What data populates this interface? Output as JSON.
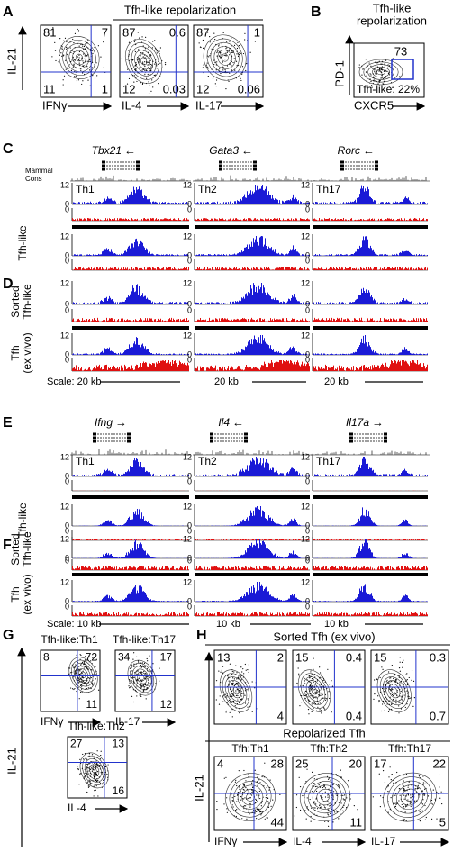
{
  "A": {
    "letter": "A",
    "title": "Tfh-like repolarization",
    "y_label": "IL-21",
    "plots": [
      {
        "x_label": "IFNγ",
        "q": {
          "tl": "81",
          "tr": "7",
          "bl": "11",
          "br": "1"
        }
      },
      {
        "x_label": "IL-4",
        "q": {
          "tl": "87",
          "tr": "0.6",
          "bl": "12",
          "br": "0.03"
        }
      },
      {
        "x_label": "IL-17",
        "q": {
          "tl": "87",
          "tr": "1",
          "bl": "12",
          "br": "0.06"
        }
      }
    ]
  },
  "B": {
    "letter": "B",
    "title": [
      "Tfh-like",
      "repolarization"
    ],
    "y_label": "PD-1",
    "x_label": "CXCR5",
    "gate": "73",
    "note": "Tfh-like: 22%"
  },
  "C": {
    "letter": "C",
    "genes": [
      {
        "name": "Tbx21",
        "dir": "←"
      },
      {
        "name": "Gata3",
        "dir": "←"
      },
      {
        "name": "Rorc",
        "dir": "←"
      }
    ],
    "cons_label": [
      "Mammal",
      "Cons"
    ],
    "samples": [
      "Th1",
      "Th2",
      "Th17"
    ],
    "row_label": "Tfh-like",
    "scale_labels": [
      "12",
      "0"
    ]
  },
  "D": {
    "letter": "D",
    "row_labels": [
      [
        "Sorted",
        "Tfh-like"
      ],
      [
        "Tfh",
        "(ex vivo)"
      ]
    ],
    "scale_labels": [
      "12",
      "0"
    ],
    "scale": [
      "Scale: 20 kb",
      "20 kb",
      "20 kb"
    ]
  },
  "E": {
    "letter": "E",
    "genes": [
      {
        "name": "Ifng",
        "dir": "→"
      },
      {
        "name": "Il4",
        "dir": "←"
      },
      {
        "name": "Il17a",
        "dir": "→"
      }
    ],
    "samples": [
      "Th1",
      "Th2",
      "Th17"
    ],
    "row_label": "Tfh-like",
    "scale_labels": [
      "12",
      "0"
    ]
  },
  "F": {
    "letter": "F",
    "row_labels": [
      [
        "Sorted",
        "Tfh-like"
      ],
      [
        "Tfh",
        "(ex vivo)"
      ]
    ],
    "scale_labels": [
      "12",
      "0"
    ],
    "scale": [
      "Scale: 10 kb",
      "10 kb",
      "10 kb"
    ]
  },
  "G": {
    "letter": "G",
    "y_label": "IL-21",
    "plots": [
      {
        "title": "Tfh-like:Th1",
        "x_label": "IFNγ",
        "q": {
          "tl": "8",
          "tr": "72",
          "br": "11"
        }
      },
      {
        "title": "Tfh-like:Th17",
        "x_label": "IL-17",
        "q": {
          "tl": "34",
          "tr": "17",
          "br": "12"
        }
      },
      {
        "title": "Tfh-like:Th2",
        "x_label": "IL-4",
        "q": {
          "tl": "27",
          "tr": "13",
          "br": "16"
        }
      }
    ]
  },
  "H": {
    "letter": "H",
    "group_titles": [
      "Sorted Tfh (ex vivo)",
      "Repolarized Tfh"
    ],
    "y_label": "IL-21",
    "sorted": [
      {
        "q": {
          "tl": "13",
          "tr": "2",
          "br": "4"
        }
      },
      {
        "q": {
          "tl": "15",
          "tr": "0.4",
          "br": "0.4"
        }
      },
      {
        "q": {
          "tl": "15",
          "tr": "0.3",
          "br": "0.7"
        }
      }
    ],
    "repolarized": [
      {
        "title": "Tfh:Th1",
        "x_label": "IFNγ",
        "q": {
          "tl": "4",
          "tr": "28",
          "br": "44"
        }
      },
      {
        "title": "Tfh:Th2",
        "x_label": "IL-4",
        "q": {
          "tl": "25",
          "tr": "20",
          "br": "11"
        }
      },
      {
        "title": "Tfh:Th17",
        "x_label": "IL-17",
        "q": {
          "tl": "17",
          "tr": "22",
          "br": "5"
        }
      }
    ]
  }
}
